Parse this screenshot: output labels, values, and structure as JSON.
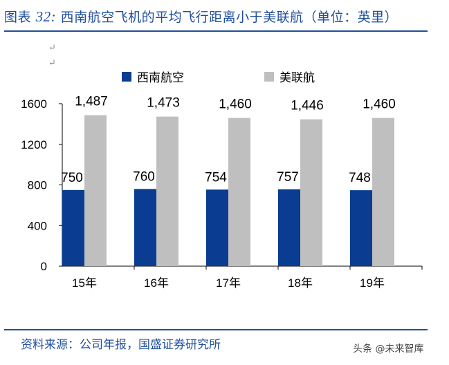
{
  "figure": {
    "label": "图表",
    "number": "32:",
    "title": "西南航空飞机的平均飞行距离小于美联航（单位：英里）"
  },
  "source": "资料来源：公司年报，国盛证券研究所",
  "watermark": "头条 @未来智库",
  "colors": {
    "southwest": "#0a3d91",
    "united": "#bfbfbf",
    "accent": "#1f4e9c"
  },
  "chart_data": {
    "type": "bar",
    "categories": [
      "15年",
      "16年",
      "17年",
      "18年",
      "19年"
    ],
    "series": [
      {
        "name": "西南航空",
        "values": [
          750,
          760,
          754,
          757,
          748
        ],
        "labels": [
          "750",
          "760",
          "754",
          "757",
          "748"
        ]
      },
      {
        "name": "美联航",
        "values": [
          1487,
          1473,
          1460,
          1446,
          1460
        ],
        "labels": [
          "1,487",
          "1,473",
          "1,460",
          "1,446",
          "1,460"
        ]
      }
    ],
    "yticks": [
      0,
      400,
      800,
      1200,
      1600
    ],
    "ylim": [
      0,
      1600
    ],
    "legend": "top",
    "grid": false
  }
}
